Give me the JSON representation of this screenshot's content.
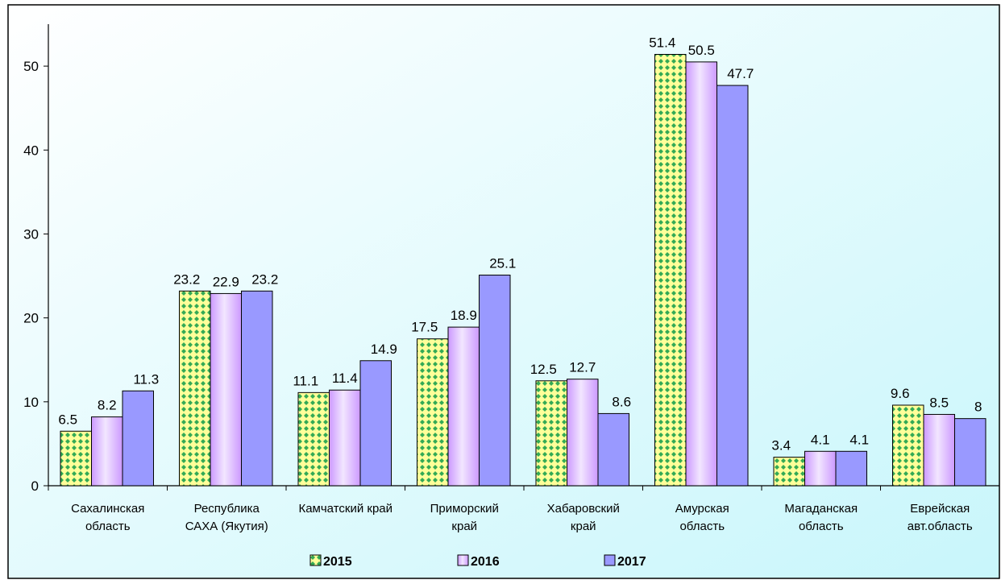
{
  "chart_data": {
    "type": "bar",
    "categories": [
      [
        "Сахалинская",
        "область"
      ],
      [
        "Республика",
        "САХА (Якутия)"
      ],
      [
        "Камчатский край"
      ],
      [
        "Приморский",
        "край"
      ],
      [
        "Хабаровский",
        "край"
      ],
      [
        "Амурская",
        "область"
      ],
      [
        "Магаданская",
        "область"
      ],
      [
        "Еврейская",
        "авт.область"
      ]
    ],
    "series": [
      {
        "name": "2015",
        "values": [
          6.5,
          23.2,
          11.1,
          17.5,
          12.5,
          51.4,
          3.4,
          9.6
        ]
      },
      {
        "name": "2016",
        "values": [
          8.2,
          22.9,
          11.4,
          18.9,
          12.7,
          50.5,
          4.1,
          8.5
        ]
      },
      {
        "name": "2017",
        "values": [
          11.3,
          23.2,
          14.9,
          25.1,
          8.6,
          47.7,
          4.1,
          8
        ]
      }
    ],
    "series_colors": {
      "2015": "#ffff99",
      "2015_pattern": "#33aa55",
      "2016": "#cc99ff",
      "2017": "#9999ff"
    },
    "ylim": [
      0,
      55
    ],
    "yticks": [
      0,
      10,
      20,
      30,
      40,
      50
    ],
    "gridlines": false,
    "legend_position": "bottom",
    "background_colors": [
      "#ffffff",
      "#c8f6fb"
    ]
  }
}
